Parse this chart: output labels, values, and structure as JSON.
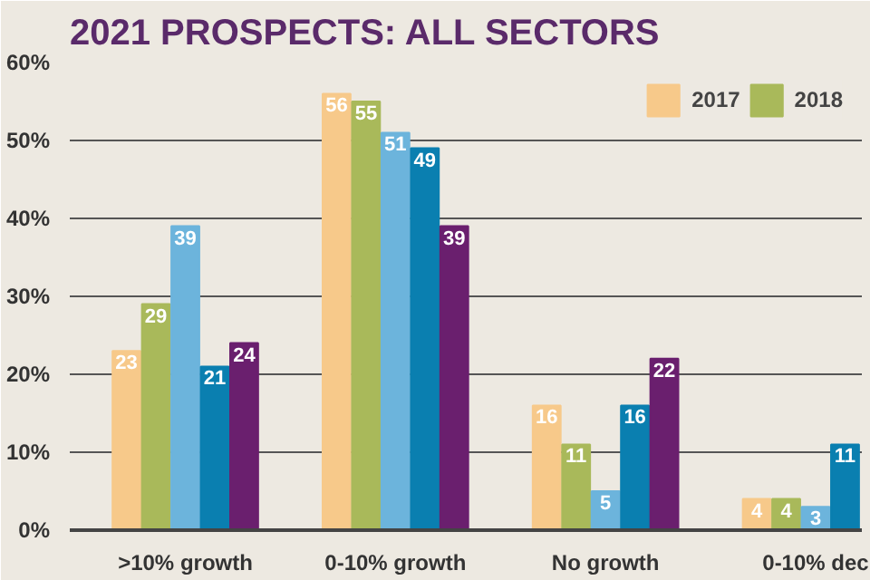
{
  "chart_data": {
    "type": "bar",
    "title": "2021 PROSPECTS: ALL SECTORS",
    "categories": [
      ">10% growth",
      "0-10% growth",
      "No growth",
      "0-10% dec"
    ],
    "series": [
      {
        "name": "2017",
        "color": "#f7c98a",
        "values": [
          23,
          56,
          16,
          4
        ]
      },
      {
        "name": "2018",
        "color": "#a9b95a",
        "values": [
          29,
          55,
          11,
          4
        ]
      },
      {
        "color": "#6cb4dc",
        "values": [
          39,
          51,
          5,
          3
        ]
      },
      {
        "color": "#0a7fb0",
        "values": [
          21,
          49,
          16,
          11
        ]
      },
      {
        "color": "#6a1f6e",
        "values": [
          24,
          39,
          22,
          null
        ]
      }
    ],
    "ylim": [
      0,
      60
    ],
    "yticks": [
      {
        "value": 0,
        "label": "0%"
      },
      {
        "value": 10,
        "label": "10%"
      },
      {
        "value": 20,
        "label": "20%"
      },
      {
        "value": 30,
        "label": "30%"
      },
      {
        "value": 40,
        "label": "40%"
      },
      {
        "value": 50,
        "label": "50%"
      },
      {
        "value": 60,
        "label": "60%"
      }
    ],
    "grid": "y",
    "legend": "top right",
    "data_labels": true
  }
}
